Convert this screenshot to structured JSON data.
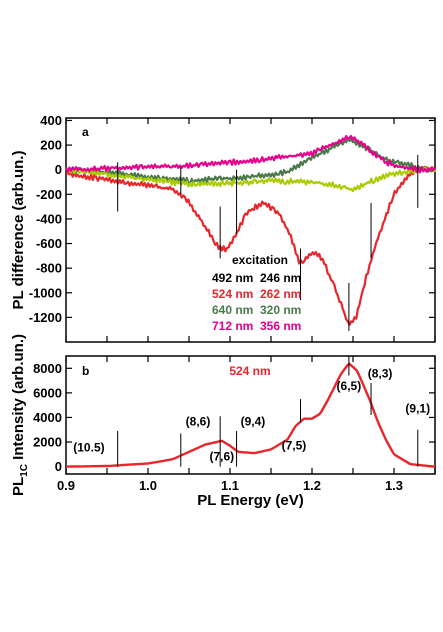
{
  "chart_data": [
    {
      "type": "line",
      "panel_label": "a",
      "ylabel": "PL  difference (arb.un.)",
      "xlim": [
        0.9,
        1.35
      ],
      "ylim": [
        -1400,
        420
      ],
      "yticks": [
        400,
        200,
        0,
        -200,
        -400,
        -600,
        -800,
        -1000,
        -1200
      ],
      "legend": {
        "title": "excitation",
        "entries": [
          {
            "a": "492 nm",
            "b": "246 nm",
            "color": "#000000"
          },
          {
            "a": "524 nm",
            "b": "262 nm",
            "color": "#e8262c"
          },
          {
            "a": "640 nm",
            "b": "320 nm",
            "color": "#4a7a4a"
          },
          {
            "a": "712 nm",
            "b": "356 nm",
            "color": "#e6008c"
          }
        ]
      },
      "vlines": [
        {
          "x": 0.963,
          "y1": 60,
          "y2": -340
        },
        {
          "x": 1.04,
          "y1": 20,
          "y2": -200
        },
        {
          "x": 1.088,
          "y1": -300,
          "y2": -720
        },
        {
          "x": 1.108,
          "y1": 0,
          "y2": -520
        },
        {
          "x": 1.186,
          "y1": -640,
          "y2": -1060
        },
        {
          "x": 1.245,
          "y1": -920,
          "y2": -1310
        },
        {
          "x": 1.272,
          "y1": -270,
          "y2": -720
        },
        {
          "x": 1.329,
          "y1": 120,
          "y2": -310
        }
      ],
      "series": [
        {
          "color": "#e8262c",
          "points": [
            [
              0.9,
              -30
            ],
            [
              0.93,
              -60
            ],
            [
              0.96,
              -90
            ],
            [
              0.99,
              -120
            ],
            [
              1.01,
              -140
            ],
            [
              1.03,
              -160
            ],
            [
              1.05,
              -260
            ],
            [
              1.07,
              -470
            ],
            [
              1.085,
              -620
            ],
            [
              1.095,
              -650
            ],
            [
              1.105,
              -560
            ],
            [
              1.12,
              -350
            ],
            [
              1.14,
              -270
            ],
            [
              1.16,
              -350
            ],
            [
              1.175,
              -560
            ],
            [
              1.185,
              -760
            ],
            [
              1.195,
              -700
            ],
            [
              1.205,
              -670
            ],
            [
              1.215,
              -760
            ],
            [
              1.23,
              -1000
            ],
            [
              1.245,
              -1260
            ],
            [
              1.255,
              -1180
            ],
            [
              1.265,
              -900
            ],
            [
              1.28,
              -560
            ],
            [
              1.3,
              -200
            ],
            [
              1.315,
              -60
            ],
            [
              1.33,
              10
            ],
            [
              1.35,
              0
            ]
          ]
        },
        {
          "color": "#4a7a4a",
          "points": [
            [
              0.9,
              0
            ],
            [
              0.95,
              -20
            ],
            [
              1.0,
              -60
            ],
            [
              1.05,
              -90
            ],
            [
              1.1,
              -70
            ],
            [
              1.15,
              -40
            ],
            [
              1.17,
              -20
            ],
            [
              1.19,
              60
            ],
            [
              1.21,
              130
            ],
            [
              1.23,
              200
            ],
            [
              1.245,
              250
            ],
            [
              1.26,
              200
            ],
            [
              1.28,
              120
            ],
            [
              1.3,
              60
            ],
            [
              1.33,
              20
            ],
            [
              1.35,
              -10
            ]
          ]
        },
        {
          "color": "#aacc00",
          "points": [
            [
              0.9,
              0
            ],
            [
              0.95,
              -40
            ],
            [
              1.0,
              -80
            ],
            [
              1.05,
              -120
            ],
            [
              1.1,
              -110
            ],
            [
              1.15,
              -90
            ],
            [
              1.2,
              -100
            ],
            [
              1.23,
              -130
            ],
            [
              1.25,
              -160
            ],
            [
              1.27,
              -100
            ],
            [
              1.3,
              -30
            ],
            [
              1.33,
              0
            ],
            [
              1.35,
              0
            ]
          ]
        },
        {
          "color": "#e6008c",
          "points": [
            [
              0.9,
              0
            ],
            [
              0.95,
              10
            ],
            [
              1.0,
              20
            ],
            [
              1.05,
              30
            ],
            [
              1.1,
              60
            ],
            [
              1.15,
              90
            ],
            [
              1.2,
              130
            ],
            [
              1.23,
              220
            ],
            [
              1.245,
              270
            ],
            [
              1.26,
              220
            ],
            [
              1.28,
              100
            ],
            [
              1.3,
              30
            ],
            [
              1.33,
              0
            ],
            [
              1.35,
              0
            ]
          ]
        }
      ]
    },
    {
      "type": "line",
      "panel_label": "b",
      "ylabel_main": "PL",
      "ylabel_sub": "1C",
      "ylabel_rest": " Intensity (arb.un.)",
      "xlabel": "PL Energy (eV)",
      "xlim": [
        0.9,
        1.35
      ],
      "ylim": [
        -600,
        9000
      ],
      "xticks": [
        0.9,
        1.0,
        1.1,
        1.2,
        1.3
      ],
      "yticks": [
        8000,
        6000,
        4000,
        2000,
        0
      ],
      "series_label": {
        "text": "524 nm",
        "color": "#e8262c"
      },
      "annotations": [
        {
          "text": "(10.5)",
          "x": 0.928,
          "y": 1250
        },
        {
          "text": "(8,6)",
          "x": 1.061,
          "y": 3350
        },
        {
          "text": "(7,6)",
          "x": 1.09,
          "y": 500
        },
        {
          "text": "(9,4)",
          "x": 1.128,
          "y": 3350
        },
        {
          "text": "(7,5)",
          "x": 1.178,
          "y": 1400
        },
        {
          "text": "(6,5)",
          "x": 1.245,
          "y": 6250
        },
        {
          "text": "(8,3)",
          "x": 1.283,
          "y": 7250
        },
        {
          "text": "(9,1)",
          "x": 1.329,
          "y": 4400
        }
      ],
      "vlines": [
        {
          "x": 0.963,
          "y1": 2900,
          "y2": 0
        },
        {
          "x": 1.04,
          "y1": 2700,
          "y2": 0
        },
        {
          "x": 1.088,
          "y1": 4100,
          "y2": 0
        },
        {
          "x": 1.108,
          "y1": 2900,
          "y2": 0
        },
        {
          "x": 1.186,
          "y1": 5500,
          "y2": 3600
        },
        {
          "x": 1.245,
          "y1": 9000,
          "y2": 7400
        },
        {
          "x": 1.272,
          "y1": 6800,
          "y2": 4200
        },
        {
          "x": 1.329,
          "y1": 3000,
          "y2": 0
        }
      ],
      "series": [
        {
          "name": "524 nm",
          "color": "#e8262c",
          "points": [
            [
              0.9,
              0
            ],
            [
              0.95,
              50
            ],
            [
              1.0,
              250
            ],
            [
              1.03,
              600
            ],
            [
              1.05,
              1200
            ],
            [
              1.07,
              1800
            ],
            [
              1.09,
              2100
            ],
            [
              1.1,
              1700
            ],
            [
              1.11,
              1200
            ],
            [
              1.13,
              1100
            ],
            [
              1.15,
              1400
            ],
            [
              1.17,
              2200
            ],
            [
              1.18,
              3300
            ],
            [
              1.19,
              3900
            ],
            [
              1.2,
              3900
            ],
            [
              1.21,
              4300
            ],
            [
              1.22,
              5500
            ],
            [
              1.235,
              7500
            ],
            [
              1.245,
              8400
            ],
            [
              1.255,
              7800
            ],
            [
              1.27,
              5500
            ],
            [
              1.28,
              3700
            ],
            [
              1.29,
              2200
            ],
            [
              1.3,
              1000
            ],
            [
              1.32,
              200
            ],
            [
              1.35,
              0
            ]
          ]
        }
      ]
    }
  ]
}
